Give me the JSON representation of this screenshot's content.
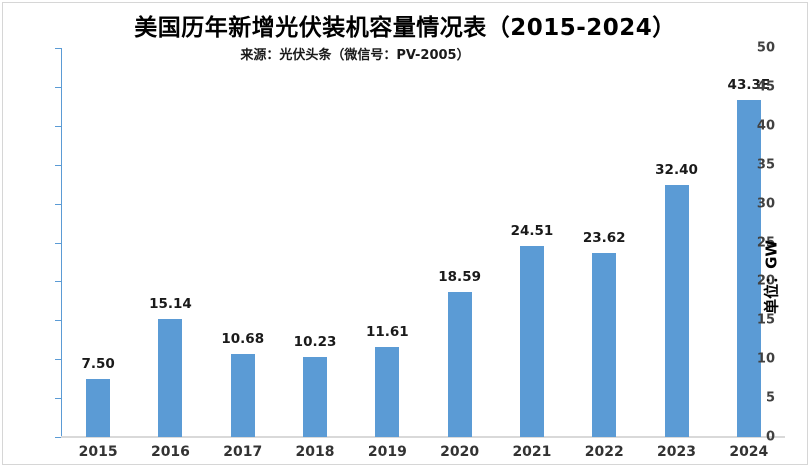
{
  "header": {
    "title": "美国历年新增光伏装机容量情况表（2015-2024）",
    "source": "来源：光伏头条（微信号：PV-2005）"
  },
  "chart_data": {
    "type": "bar",
    "title": "美国历年新增光伏装机容量情况表（2015-2024）",
    "subtitle": "来源：光伏头条（微信号：PV-2005）",
    "categories": [
      "2015",
      "2016",
      "2017",
      "2018",
      "2019",
      "2020",
      "2021",
      "2022",
      "2023",
      "2024"
    ],
    "values": [
      7.5,
      15.14,
      10.68,
      10.23,
      11.61,
      18.59,
      24.51,
      23.62,
      32.4,
      43.3
    ],
    "value_labels": [
      "7.50",
      "15.14",
      "10.68",
      "10.23",
      "11.61",
      "18.59",
      "24.51",
      "23.62",
      "32.40",
      "43.3E"
    ],
    "xlabel": "",
    "ylabel": "",
    "unit_label": "单位：GW",
    "ylim": [
      0,
      50
    ],
    "yticks": [
      0,
      5,
      10,
      15,
      20,
      25,
      30,
      35,
      40,
      45,
      50
    ],
    "grid": false,
    "legend": "none",
    "bar_color": "#5b9bd5",
    "axis_color": "#5b9bd5",
    "baseline_color": "#d9d9d9",
    "label_color": "#1a1a1a"
  }
}
